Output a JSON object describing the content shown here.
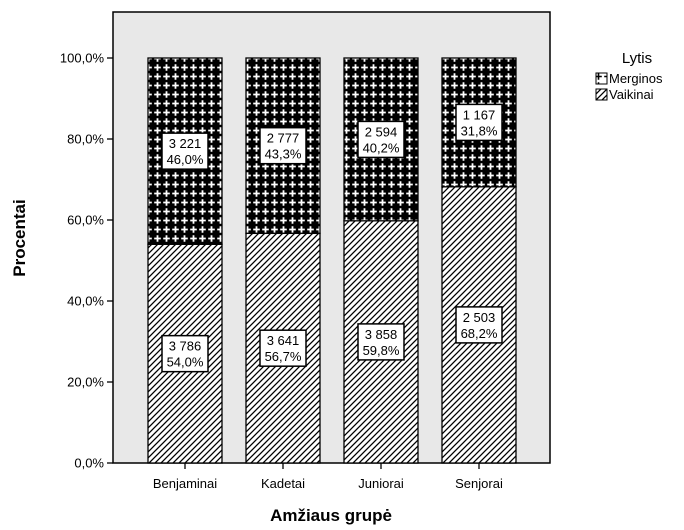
{
  "chart_data": {
    "type": "bar",
    "stacked": true,
    "percent": true,
    "categories": [
      "Benjaminai",
      "Kadetai",
      "Juniorai",
      "Senjorai"
    ],
    "series": [
      {
        "name": "Vaikinai",
        "values": [
          54.0,
          56.7,
          59.8,
          68.2
        ],
        "counts": [
          "3 786",
          "3 641",
          "3 858",
          "2 503"
        ],
        "percent_labels": [
          "54,0%",
          "56,7%",
          "59,8%",
          "68,2%"
        ],
        "pattern": "diagonal-hatch"
      },
      {
        "name": "Merginos",
        "values": [
          46.0,
          43.3,
          40.2,
          31.8
        ],
        "counts": [
          "3 221",
          "2 777",
          "2 594",
          "1 167"
        ],
        "percent_labels": [
          "46,0%",
          "43,3%",
          "40,2%",
          "31,8%"
        ],
        "pattern": "cross-dots"
      }
    ],
    "xlabel": "Amžiaus grupė",
    "ylabel": "Procentai",
    "ylim": [
      0,
      100
    ],
    "yticks": [
      0,
      20,
      40,
      60,
      80,
      100
    ],
    "ytick_labels": [
      "0,0%",
      "20,0%",
      "40,0%",
      "60,0%",
      "80,0%",
      "100,0%"
    ],
    "legend": {
      "title": "Lytis",
      "placement": "top-right",
      "entries": [
        "Merginos",
        "Vaikinai"
      ]
    },
    "plot_background": "#e8e8e8",
    "grid": false
  }
}
